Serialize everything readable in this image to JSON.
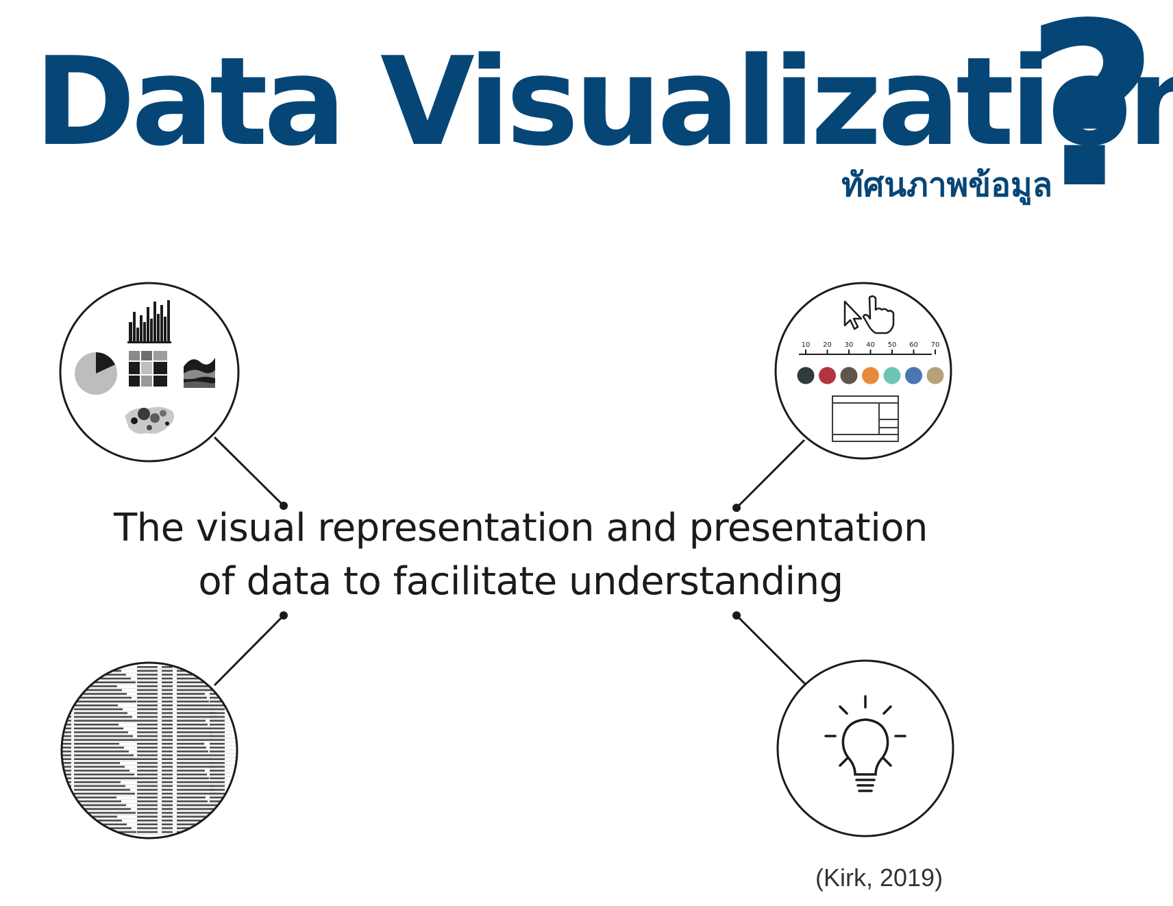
{
  "title": {
    "main": "Data Visualization",
    "mark": "?",
    "subtitle": "ทัศนภาพข้อมูล"
  },
  "statement": {
    "line1": "The visual representation and presentation",
    "line2": "of data to facilitate understanding"
  },
  "citation": "(Kirk, 2019)",
  "slider_ticks": [
    "10",
    "20",
    "30",
    "40",
    "50",
    "60",
    "70"
  ],
  "palette": [
    "#2e3c3d",
    "#b3343f",
    "#5f554a",
    "#e78a3a",
    "#6fc4b8",
    "#4a77b2",
    "#b5a27a"
  ],
  "colors": {
    "title": "#064677",
    "text": "#1b1b1b",
    "stroke": "#1b1b1b"
  }
}
